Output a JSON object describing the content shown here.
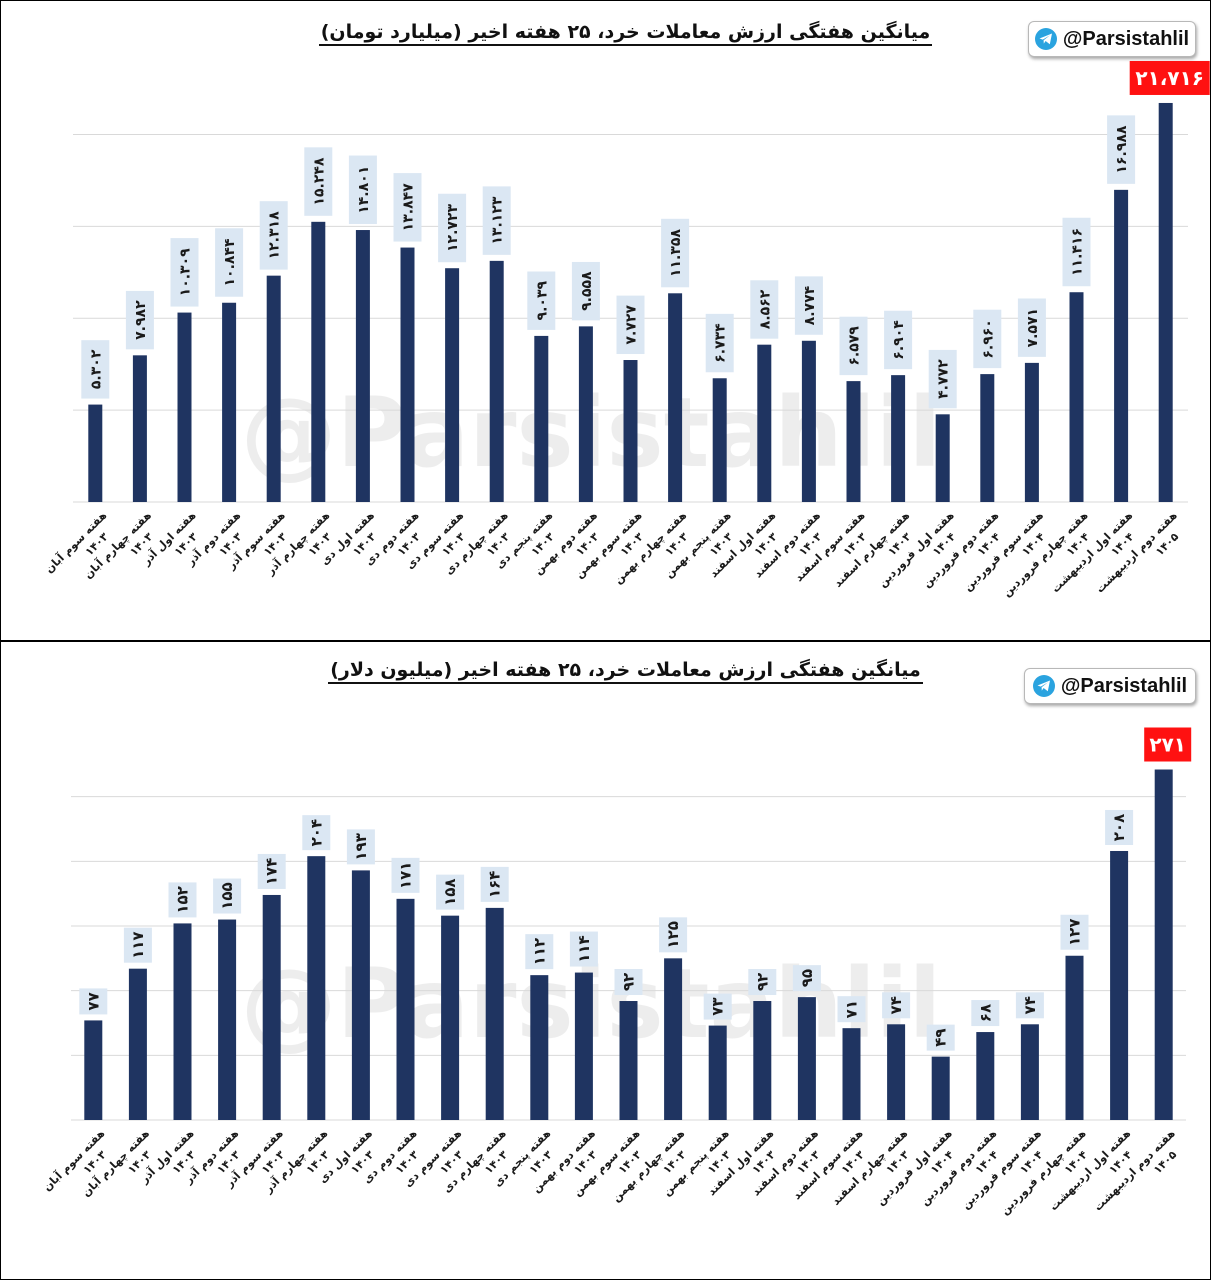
{
  "brand_handle": "@Parsistahlil",
  "watermark": "@Parsistahlil",
  "colors": {
    "bar": "#1f3461",
    "label_bg": "#dbe7f3",
    "highlight": "#ff1111",
    "grid": "#d9d9d9",
    "telegram": "#2aa3df"
  },
  "chart_data": [
    {
      "type": "bar",
      "title": "میانگین هفتگی ارزش معاملات خرد، ۲۵ هفته اخیر (میلیارد تومان)",
      "categories": [
        [
          "هفته سوم آبان",
          "۱۴۰۳"
        ],
        [
          "هفته چهارم آبان",
          "۱۴۰۳"
        ],
        [
          "هفته اول آذر",
          "۱۴۰۳"
        ],
        [
          "هفته دوم آذر",
          "۱۴۰۳"
        ],
        [
          "هفته سوم آذر",
          "۱۴۰۳"
        ],
        [
          "هفته چهارم آذر",
          "۱۴۰۳"
        ],
        [
          "هفته اول دی",
          "۱۴۰۳"
        ],
        [
          "هفته دوم دی",
          "۱۴۰۳"
        ],
        [
          "هفته سوم دی",
          "۱۴۰۳"
        ],
        [
          "هفته چهارم دی",
          "۱۴۰۳"
        ],
        [
          "هفته پنجم دی",
          "۱۴۰۳"
        ],
        [
          "هفته دوم بهمن",
          "۱۴۰۳"
        ],
        [
          "هفته سوم بهمن",
          "۱۴۰۳"
        ],
        [
          "هفته چهارم بهمن",
          "۱۴۰۳"
        ],
        [
          "هفته پنجم بهمن",
          "۱۴۰۳"
        ],
        [
          "هفته اول اسفند",
          "۱۴۰۳"
        ],
        [
          "هفته دوم اسفند",
          "۱۴۰۳"
        ],
        [
          "هفته سوم اسفند",
          "۱۴۰۳"
        ],
        [
          "هفته چهارم اسفند",
          "۱۴۰۳"
        ],
        [
          "هفته اول فروردین",
          "۱۴۰۴"
        ],
        [
          "هفته دوم فروردین",
          "۱۴۰۴"
        ],
        [
          "هفته سوم فروردین",
          "۱۴۰۴"
        ],
        [
          "هفته چهارم فروردین",
          "۱۴۰۴"
        ],
        [
          "هفته اول اردیبهشت",
          "۱۴۰۴"
        ],
        [
          "هفته دوم اردیبهشت",
          "۱۴۰۵"
        ]
      ],
      "values": [
        5.302,
        7.982,
        10.309,
        10.844,
        12.318,
        15.248,
        14.801,
        13.847,
        12.723,
        13.123,
        9.039,
        9.558,
        7.727,
        11.358,
        6.734,
        8.562,
        8.774,
        6.579,
        6.904,
        4.772,
        6.96,
        7.571,
        11.416,
        16.988,
        21.716
      ],
      "value_labels": [
        "۵.۳۰۲",
        "۷.۹۸۲",
        "۱۰.۳۰۹",
        "۱۰.۸۴۴",
        "۱۲.۳۱۸",
        "۱۵.۲۴۸",
        "۱۴.۸۰۱",
        "۱۳.۸۴۷",
        "۱۲.۷۲۳",
        "۱۳.۱۲۳",
        "۹.۰۳۹",
        "۹.۵۵۸",
        "۷.۷۲۷",
        "۱۱.۳۵۸",
        "۶.۷۳۴",
        "۸.۵۶۲",
        "۸.۷۷۴",
        "۶.۵۷۹",
        "۶.۹۰۴",
        "۴.۷۷۲",
        "۶.۹۶۰",
        "۷.۵۷۱",
        "۱۱.۴۱۶",
        "۱۶.۹۸۸",
        "۲۱،۷۱۶"
      ],
      "highlight_last": true,
      "ylim": [
        0,
        24
      ],
      "gridlines": [
        5,
        10,
        15,
        20
      ],
      "grid": true,
      "legend": "none"
    },
    {
      "type": "bar",
      "title": "میانگین هفتگی ارزش معاملات خرد، ۲۵ هفته اخیر (میلیون دلار)",
      "categories": [
        [
          "هفته سوم آبان",
          "۱۴۰۳"
        ],
        [
          "هفته چهارم آبان",
          "۱۴۰۳"
        ],
        [
          "هفته اول آذر",
          "۱۴۰۳"
        ],
        [
          "هفته دوم آذر",
          "۱۴۰۳"
        ],
        [
          "هفته سوم آذر",
          "۱۴۰۳"
        ],
        [
          "هفته چهارم آذر",
          "۱۴۰۳"
        ],
        [
          "هفته اول دی",
          "۱۴۰۳"
        ],
        [
          "هفته دوم دی",
          "۱۴۰۳"
        ],
        [
          "هفته سوم دی",
          "۱۴۰۳"
        ],
        [
          "هفته چهارم دی",
          "۱۴۰۳"
        ],
        [
          "هفته پنجم دی",
          "۱۴۰۳"
        ],
        [
          "هفته دوم بهمن",
          "۱۴۰۳"
        ],
        [
          "هفته سوم بهمن",
          "۱۴۰۳"
        ],
        [
          "هفته چهارم بهمن",
          "۱۴۰۳"
        ],
        [
          "هفته پنجم بهمن",
          "۱۴۰۳"
        ],
        [
          "هفته اول اسفند",
          "۱۴۰۳"
        ],
        [
          "هفته دوم اسفند",
          "۱۴۰۳"
        ],
        [
          "هفته سوم اسفند",
          "۱۴۰۳"
        ],
        [
          "هفته چهارم اسفند",
          "۱۴۰۳"
        ],
        [
          "هفته اول فروردین",
          "۱۴۰۴"
        ],
        [
          "هفته دوم فروردین",
          "۱۴۰۴"
        ],
        [
          "هفته سوم فروردین",
          "۱۴۰۴"
        ],
        [
          "هفته چهارم فروردین",
          "۱۴۰۴"
        ],
        [
          "هفته اول اردیبهشت",
          "۱۴۰۴"
        ],
        [
          "هفته دوم اردیبهشت",
          "۱۴۰۵"
        ]
      ],
      "values": [
        77,
        117,
        152,
        155,
        174,
        204,
        193,
        171,
        158,
        164,
        112,
        114,
        92,
        125,
        73,
        92,
        95,
        71,
        74,
        49,
        68,
        74,
        127,
        208,
        271
      ],
      "value_labels": [
        "۷۷",
        "۱۱۷",
        "۱۵۲",
        "۱۵۵",
        "۱۷۴",
        "۲۰۴",
        "۱۹۳",
        "۱۷۱",
        "۱۵۸",
        "۱۶۴",
        "۱۱۲",
        "۱۱۴",
        "۹۲",
        "۱۲۵",
        "۷۳",
        "۹۲",
        "۹۵",
        "۷۱",
        "۷۴",
        "۴۹",
        "۶۸",
        "۷۴",
        "۱۲۷",
        "۲۰۸",
        "۲۷۱"
      ],
      "highlight_last": true,
      "ylim": [
        0,
        300
      ],
      "gridlines": [
        50,
        100,
        150,
        200,
        250
      ],
      "grid": true,
      "legend": "none"
    }
  ]
}
